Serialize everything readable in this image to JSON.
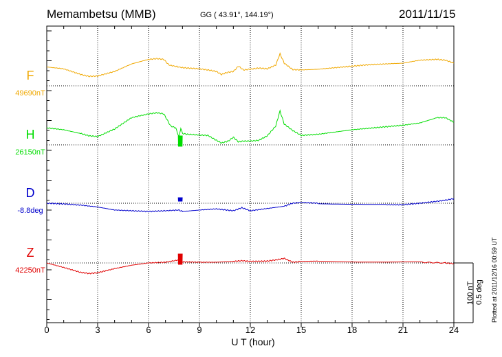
{
  "header": {
    "station": "Memambetsu (MMB)",
    "coords": "GG ( 43.91°, 144.19°)",
    "date": "2011/11/15"
  },
  "footer": {
    "xlabel": "U T (hour)",
    "scale_nt": "100 nT",
    "scale_deg": "0.5 deg",
    "plotted": "Plotted at 2011/12/16 00:59 UT"
  },
  "chart_data": {
    "type": "line",
    "title": "Memambetsu (MMB)",
    "xlabel": "U T (hour)",
    "ylabel": "",
    "xlim": [
      0,
      24
    ],
    "x_ticks": [
      "0",
      "3",
      "6",
      "9",
      "12",
      "15",
      "18",
      "21",
      "24"
    ],
    "grid": "dotted at 3-hour intervals",
    "scale": "100 nT / 0.5 deg",
    "series": [
      {
        "name": "F",
        "baseline_label": "49690nT",
        "color": "#f0a800",
        "x": [
          0,
          1,
          2,
          2.5,
          3,
          4,
          5,
          6,
          6.5,
          6.9,
          7.2,
          8,
          9,
          9.5,
          10,
          10.3,
          10.6,
          11,
          11.3,
          11.6,
          12,
          12.5,
          13,
          13.5,
          13.75,
          14,
          14.5,
          15,
          16,
          17,
          18,
          19,
          20,
          21,
          22,
          23,
          23.5,
          24
        ],
        "values": [
          50,
          45,
          30,
          25,
          26,
          38,
          58,
          70,
          72,
          70,
          55,
          48,
          45,
          42,
          38,
          30,
          35,
          38,
          52,
          42,
          44,
          47,
          45,
          55,
          85,
          60,
          43,
          42,
          44,
          48,
          52,
          56,
          58,
          60,
          68,
          70,
          68,
          60
        ]
      },
      {
        "name": "H",
        "baseline_label": "26150nT",
        "color": "#00dd00",
        "x": [
          0,
          1,
          2,
          2.5,
          3,
          4,
          5,
          6,
          6.5,
          6.9,
          7.3,
          7.6,
          7.8,
          7.9,
          8,
          8.3,
          9,
          9.5,
          10,
          10.3,
          10.7,
          11,
          11.3,
          11.6,
          12,
          12.5,
          13,
          13.5,
          13.75,
          14,
          14.5,
          15,
          16,
          17,
          18,
          19,
          20,
          21,
          22,
          23,
          23.5,
          24
        ],
        "values": [
          45,
          40,
          30,
          24,
          22,
          42,
          72,
          82,
          85,
          82,
          50,
          45,
          20,
          45,
          30,
          28,
          26,
          25,
          12,
          5,
          10,
          20,
          8,
          10,
          10,
          12,
          24,
          50,
          90,
          55,
          38,
          25,
          28,
          34,
          40,
          44,
          48,
          52,
          58,
          72,
          72,
          60
        ]
      },
      {
        "name": "D",
        "baseline_label": "-8.8deg",
        "color": "#0000cc",
        "x": [
          0,
          1,
          2,
          3,
          4,
          5,
          6,
          7,
          7.8,
          8,
          9,
          10,
          11,
          11.5,
          12,
          13,
          14,
          14.5,
          15,
          16,
          18,
          20,
          21,
          22,
          23,
          23.5,
          24
        ],
        "values": [
          0,
          -2,
          -5,
          -10,
          -18,
          -20,
          -22,
          -20,
          -18,
          -22,
          -18,
          -15,
          -20,
          -12,
          -20,
          -14,
          -8,
          0,
          2,
          0,
          -2,
          -4,
          -4,
          0,
          5,
          8,
          12
        ]
      },
      {
        "name": "Z",
        "baseline_label": "42250nT",
        "color": "#e00000",
        "x": [
          0,
          1,
          2,
          2.5,
          3,
          4,
          5,
          6,
          7,
          7.8,
          8,
          9,
          10,
          11,
          11.5,
          12,
          13,
          13.5,
          14,
          14.5,
          15,
          16,
          18,
          20,
          22,
          23.5,
          24
        ],
        "values": [
          0,
          -12,
          -25,
          -28,
          -26,
          -15,
          -6,
          0,
          2,
          8,
          3,
          2,
          2,
          4,
          6,
          4,
          5,
          8,
          12,
          2,
          4,
          5,
          4,
          3,
          2,
          0,
          -2
        ]
      }
    ]
  }
}
